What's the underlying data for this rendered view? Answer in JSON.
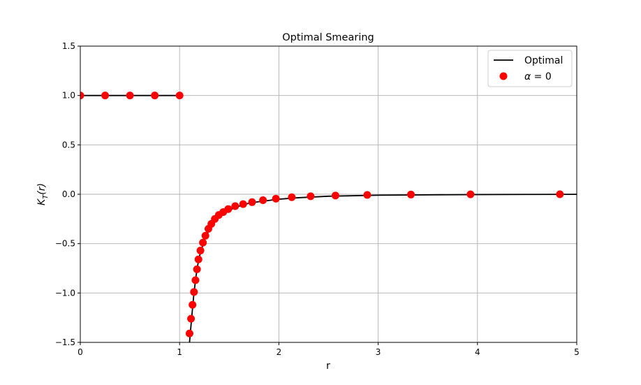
{
  "chart_data": {
    "type": "line",
    "title": "Optimal Smearing",
    "xlabel": "r",
    "ylabel_base": "K",
    "ylabel_sub": "T",
    "ylabel_arg": "(r)",
    "xlim": [
      0,
      5
    ],
    "ylim": [
      -1.5,
      1.5
    ],
    "xticks": [
      0,
      1,
      2,
      3,
      4,
      5
    ],
    "xtick_labels": [
      "0",
      "1",
      "2",
      "3",
      "4",
      "5"
    ],
    "yticks": [
      -1.5,
      -1.0,
      -0.5,
      0.0,
      0.5,
      1.0,
      1.5
    ],
    "ytick_labels": [
      "−1.5",
      "−1.0",
      "−0.5",
      "0.0",
      "0.5",
      "1.0",
      "1.5"
    ],
    "grid": true,
    "legend_position": "top-right",
    "series": [
      {
        "name": "Optimal",
        "style": "line",
        "color": "#000000",
        "segments": [
          {
            "x": [
              0,
              1
            ],
            "y": [
              1.0,
              1.0
            ]
          },
          {
            "x": [
              1.1,
              1.12,
              1.14,
              1.16,
              1.18,
              1.2,
              1.25,
              1.3,
              1.35,
              1.4,
              1.5,
              1.6,
              1.7,
              1.8,
              2.0,
              2.2,
              2.5,
              3.0,
              3.5,
              4.0,
              4.5,
              5.0
            ],
            "y": [
              -1.5,
              -1.27,
              -1.05,
              -0.87,
              -0.73,
              -0.63,
              -0.46,
              -0.36,
              -0.28,
              -0.23,
              -0.16,
              -0.12,
              -0.09,
              -0.075,
              -0.05,
              -0.035,
              -0.02,
              -0.01,
              -0.006,
              -0.003,
              -0.002,
              -0.001
            ]
          }
        ]
      },
      {
        "name_greek": "α",
        "name_rest": " = 0",
        "style": "markers",
        "color": "#ff0000",
        "x": [
          0,
          0.25,
          0.5,
          0.75,
          1.0,
          1.1,
          1.115,
          1.13,
          1.145,
          1.16,
          1.175,
          1.19,
          1.21,
          1.235,
          1.26,
          1.29,
          1.32,
          1.355,
          1.395,
          1.44,
          1.49,
          1.56,
          1.64,
          1.73,
          1.84,
          1.97,
          2.13,
          2.32,
          2.57,
          2.89,
          3.33,
          3.93,
          4.83
        ],
        "y": [
          1.0,
          1.0,
          1.0,
          1.0,
          1.0,
          -1.41,
          -1.26,
          -1.12,
          -0.99,
          -0.87,
          -0.76,
          -0.66,
          -0.57,
          -0.49,
          -0.42,
          -0.35,
          -0.3,
          -0.25,
          -0.21,
          -0.18,
          -0.15,
          -0.12,
          -0.1,
          -0.08,
          -0.06,
          -0.045,
          -0.03,
          -0.02,
          -0.013,
          -0.007,
          -0.003,
          -0.001,
          0.0
        ]
      }
    ]
  }
}
